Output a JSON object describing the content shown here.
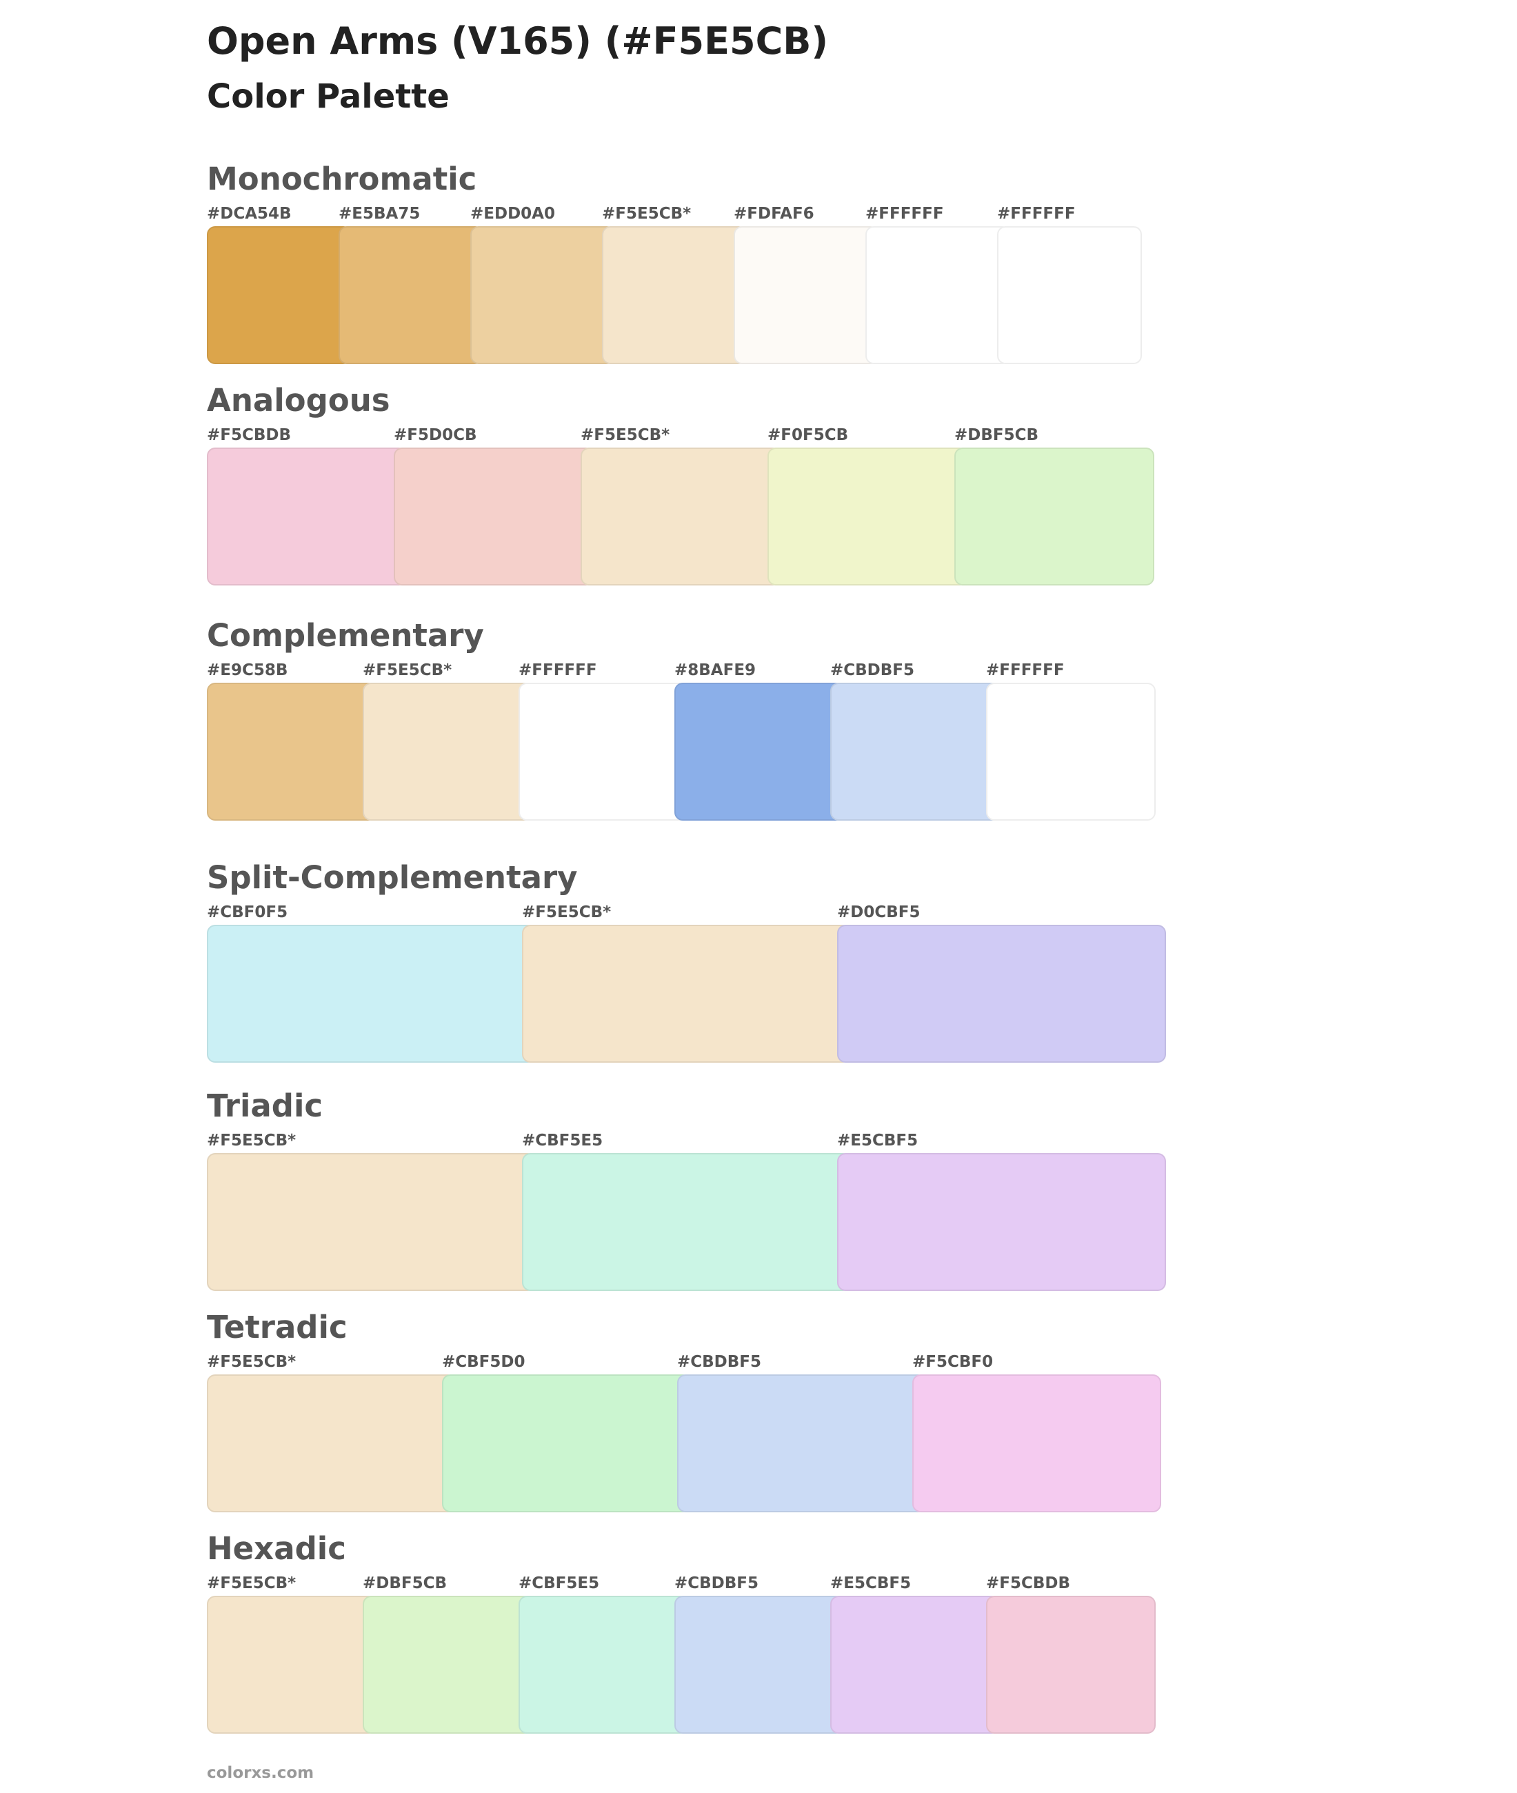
{
  "page": {
    "title": "Open Arms (V165) (#F5E5CB)",
    "subtitle": "Color Palette",
    "footer": "colorxs.com"
  },
  "sections": [
    {
      "title": "Monochromatic",
      "colors": [
        {
          "hex": "#DCA54B",
          "label": "#DCA54B"
        },
        {
          "hex": "#E5BA75",
          "label": "#E5BA75"
        },
        {
          "hex": "#EDD0A0",
          "label": "#EDD0A0"
        },
        {
          "hex": "#F5E5CB",
          "label": "#F5E5CB*"
        },
        {
          "hex": "#FDFAF6",
          "label": "#FDFAF6"
        },
        {
          "hex": "#FFFFFF",
          "label": "#FFFFFF"
        },
        {
          "hex": "#FFFFFF",
          "label": "#FFFFFF"
        }
      ]
    },
    {
      "title": "Analogous",
      "colors": [
        {
          "hex": "#F5CBDB",
          "label": "#F5CBDB"
        },
        {
          "hex": "#F5D0CB",
          "label": "#F5D0CB"
        },
        {
          "hex": "#F5E5CB",
          "label": "#F5E5CB*"
        },
        {
          "hex": "#F0F5CB",
          "label": "#F0F5CB"
        },
        {
          "hex": "#DBF5CB",
          "label": "#DBF5CB"
        }
      ]
    },
    {
      "title": "Complementary",
      "colors": [
        {
          "hex": "#E9C58B",
          "label": "#E9C58B"
        },
        {
          "hex": "#F5E5CB",
          "label": "#F5E5CB*"
        },
        {
          "hex": "#FFFFFF",
          "label": "#FFFFFF"
        },
        {
          "hex": "#8BAFE9",
          "label": "#8BAFE9"
        },
        {
          "hex": "#CBDBF5",
          "label": "#CBDBF5"
        },
        {
          "hex": "#FFFFFF",
          "label": "#FFFFFF"
        }
      ]
    },
    {
      "title": "Split-Complementary",
      "colors": [
        {
          "hex": "#CBF0F5",
          "label": "#CBF0F5"
        },
        {
          "hex": "#F5E5CB",
          "label": "#F5E5CB*"
        },
        {
          "hex": "#D0CBF5",
          "label": "#D0CBF5"
        }
      ]
    },
    {
      "title": "Triadic",
      "colors": [
        {
          "hex": "#F5E5CB",
          "label": "#F5E5CB*"
        },
        {
          "hex": "#CBF5E5",
          "label": "#CBF5E5"
        },
        {
          "hex": "#E5CBF5",
          "label": "#E5CBF5"
        }
      ]
    },
    {
      "title": "Tetradic",
      "colors": [
        {
          "hex": "#F5E5CB",
          "label": "#F5E5CB*"
        },
        {
          "hex": "#CBF5D0",
          "label": "#CBF5D0"
        },
        {
          "hex": "#CBDBF5",
          "label": "#CBDBF5"
        },
        {
          "hex": "#F5CBF0",
          "label": "#F5CBF0"
        }
      ]
    },
    {
      "title": "Hexadic",
      "colors": [
        {
          "hex": "#F5E5CB",
          "label": "#F5E5CB*"
        },
        {
          "hex": "#DBF5CB",
          "label": "#DBF5CB"
        },
        {
          "hex": "#CBF5E5",
          "label": "#CBF5E5"
        },
        {
          "hex": "#CBDBF5",
          "label": "#CBDBF5"
        },
        {
          "hex": "#E5CBF5",
          "label": "#E5CBF5"
        },
        {
          "hex": "#F5CBDB",
          "label": "#F5CBDB"
        }
      ]
    }
  ]
}
